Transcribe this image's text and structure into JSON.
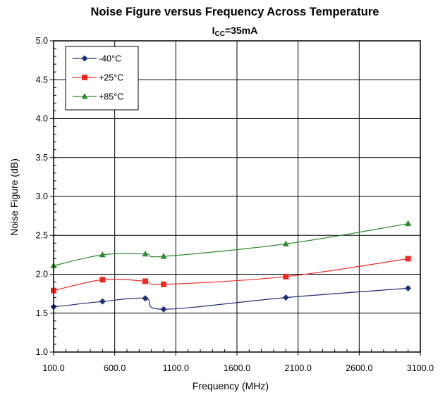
{
  "chart_data": {
    "type": "line",
    "title": "Noise Figure versus Frequency Across Temperature",
    "subtitle": {
      "main": "I",
      "sub": "CC",
      "rest": "=35mA"
    },
    "xlabel": "Frequency (MHz)",
    "ylabel": "Noise Figure (dB)",
    "xlim": [
      100,
      3100
    ],
    "ylim": [
      1.0,
      5.0
    ],
    "x_ticks": [
      100,
      600,
      1100,
      1600,
      2100,
      2600,
      3100
    ],
    "x_tick_labels": [
      "100.0",
      "600.0",
      "1100.0",
      "1600.0",
      "2100.0",
      "2600.0",
      "3100.0"
    ],
    "y_ticks": [
      1.0,
      1.5,
      2.0,
      2.5,
      3.0,
      3.5,
      4.0,
      4.5,
      5.0
    ],
    "y_tick_labels": [
      "1.0",
      "1.5",
      "2.0",
      "2.5",
      "3.0",
      "3.5",
      "4.0",
      "4.5",
      "5.0"
    ],
    "grid": true,
    "legend_position": "top-left",
    "series": [
      {
        "name": "-40°C",
        "color": "#1f2f7a",
        "marker": "diamond",
        "x": [
          100,
          500,
          850,
          1000,
          2000,
          3000
        ],
        "y": [
          1.58,
          1.65,
          1.69,
          1.55,
          1.7,
          1.82
        ]
      },
      {
        "name": "+25°C",
        "color": "#ee2a24",
        "marker": "square",
        "x": [
          100,
          500,
          850,
          1000,
          2000,
          3000
        ],
        "y": [
          1.79,
          1.93,
          1.91,
          1.87,
          1.97,
          2.2
        ]
      },
      {
        "name": "+85°C",
        "color": "#2f8a2f",
        "marker": "triangle",
        "x": [
          100,
          500,
          850,
          1000,
          2000,
          3000
        ],
        "y": [
          2.11,
          2.25,
          2.26,
          2.23,
          2.39,
          2.65
        ]
      }
    ]
  }
}
